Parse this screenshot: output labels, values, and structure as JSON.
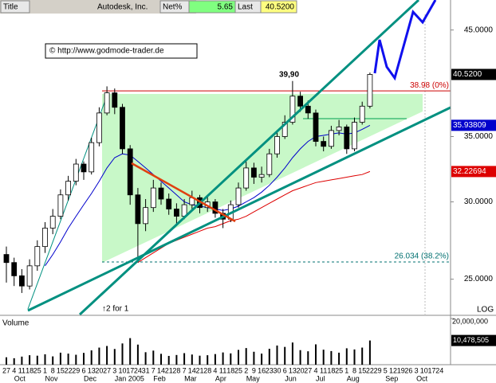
{
  "chart_data": {
    "type": "candlestick",
    "header": {
      "title": "Title",
      "name": "Autodesk, Inc.",
      "net_label": "Net%",
      "net": "5.65",
      "last_label": "Last",
      "last": "40.5200"
    },
    "copyright": "© http://www.godmode-trader.de",
    "high_note": "39,90",
    "split_note": "↑2 for 1",
    "scale_note": "LOG",
    "log_scale": true,
    "ylim": [
      23.0,
      48.3
    ],
    "yticks": [
      {
        "value": 25,
        "label": "25.0000"
      },
      {
        "value": 30,
        "label": "30.0000"
      },
      {
        "value": 35,
        "label": "35.0000"
      },
      {
        "value": 45,
        "label": "45.0000"
      }
    ],
    "categories": [
      "27",
      "4",
      "11",
      "18",
      "25",
      "1",
      "8",
      "15",
      "22",
      "29",
      "6",
      "13",
      "20",
      "27",
      "3",
      "10",
      "17",
      "24",
      "31",
      "7",
      "14",
      "21",
      "28",
      "7",
      "14",
      "21",
      "28",
      "4",
      "11",
      "18",
      "25",
      "2",
      "9",
      "16",
      "23",
      "30",
      "6",
      "13",
      "20",
      "27",
      "4",
      "11",
      "18",
      "25",
      "1",
      "8",
      "15",
      "22",
      "29",
      "5",
      "12",
      "19",
      "26",
      "3",
      "10",
      "17",
      "24"
    ],
    "months": [
      null,
      "Oct",
      null,
      null,
      null,
      "Nov",
      null,
      null,
      null,
      null,
      "Dec",
      null,
      null,
      null,
      "Jan 2005",
      null,
      null,
      null,
      null,
      "Feb",
      null,
      null,
      null,
      "Mar",
      null,
      null,
      null,
      "Apr",
      null,
      null,
      null,
      "May",
      null,
      null,
      null,
      null,
      "Jun",
      null,
      null,
      null,
      "Jul",
      null,
      null,
      null,
      "Aug",
      null,
      null,
      null,
      null,
      "Sep",
      null,
      null,
      null,
      "Oct",
      null,
      null,
      null
    ],
    "open": [
      26.5,
      26.0,
      25.2,
      24.6,
      25.8,
      27.0,
      28.2,
      29.0,
      30.5,
      31.5,
      32.8,
      32.2,
      34.5,
      37.0,
      38.8,
      37.5,
      34.0,
      30.5,
      28.5,
      29.6,
      31.0,
      30.2,
      29.5,
      29.0,
      29.8,
      30.3,
      29.6,
      30.0,
      29.2,
      28.8,
      29.8,
      31.0,
      32.5,
      31.8,
      32.0,
      33.6,
      35.0,
      36.2,
      38.5,
      37.6,
      37.0,
      34.6,
      34.2,
      35.5,
      35.8,
      34.0,
      36.2,
      37.6,
      null,
      null,
      null,
      null,
      null,
      null,
      null,
      null,
      null
    ],
    "high": [
      27.0,
      26.3,
      25.6,
      26.2,
      27.4,
      28.6,
      29.5,
      30.9,
      31.9,
      33.2,
      33.0,
      34.9,
      37.5,
      39.4,
      39.2,
      37.8,
      34.3,
      31.0,
      30.2,
      31.6,
      31.4,
      30.6,
      29.9,
      30.2,
      30.8,
      30.5,
      30.4,
      30.2,
      29.5,
      30.1,
      31.4,
      33.0,
      32.9,
      32.6,
      34.0,
      35.4,
      36.8,
      39.9,
      38.9,
      38.1,
      37.3,
      35.0,
      35.9,
      36.4,
      36.0,
      36.6,
      38.0,
      40.7,
      null,
      null,
      null,
      null,
      null,
      null,
      null,
      null,
      null
    ],
    "low": [
      24.8,
      24.6,
      24.2,
      24.4,
      25.5,
      26.6,
      27.8,
      28.8,
      30.1,
      31.2,
      31.6,
      32.0,
      34.2,
      36.8,
      36.9,
      33.6,
      29.8,
      26.0,
      28.0,
      29.3,
      29.8,
      29.1,
      28.5,
      28.8,
      29.5,
      29.2,
      29.3,
      28.9,
      28.2,
      28.6,
      29.6,
      30.8,
      31.3,
      31.4,
      31.8,
      33.3,
      34.8,
      36.0,
      37.1,
      36.5,
      34.2,
      33.8,
      34.0,
      35.1,
      33.6,
      33.8,
      36.0,
      37.4,
      null,
      null,
      null,
      null,
      null,
      null,
      null,
      null,
      null
    ],
    "close": [
      26.0,
      25.2,
      24.6,
      25.8,
      27.0,
      28.2,
      29.0,
      30.5,
      31.5,
      32.8,
      32.2,
      34.5,
      37.0,
      38.8,
      37.5,
      34.0,
      30.5,
      28.5,
      29.6,
      31.0,
      30.2,
      29.5,
      29.0,
      29.8,
      30.3,
      29.6,
      30.0,
      29.2,
      28.8,
      29.8,
      31.0,
      32.5,
      31.8,
      32.0,
      33.6,
      35.0,
      36.2,
      38.5,
      37.6,
      37.0,
      34.6,
      34.2,
      35.5,
      35.8,
      34.0,
      36.2,
      37.6,
      40.52,
      null,
      null,
      null,
      null,
      null,
      null,
      null,
      null,
      null
    ],
    "last_label": "40.5200",
    "overlays": [
      {
        "color": "#0000cc",
        "last_label": "35.93809",
        "values": [
          null,
          null,
          null,
          null,
          null,
          25.8,
          26.5,
          27.3,
          28.2,
          29.0,
          29.8,
          30.6,
          31.5,
          32.5,
          33.3,
          33.6,
          33.5,
          33.0,
          32.5,
          32.0,
          31.5,
          31.0,
          30.5,
          30.0,
          29.8,
          29.7,
          29.6,
          29.5,
          29.4,
          29.5,
          29.7,
          30.0,
          30.3,
          30.7,
          31.2,
          31.8,
          32.5,
          33.3,
          34.0,
          34.6,
          35.0,
          35.1,
          35.2,
          35.3,
          35.2,
          35.3,
          35.6,
          35.93809,
          null,
          null,
          null,
          null,
          null,
          null,
          null,
          null,
          null
        ]
      },
      {
        "color": "#dd0000",
        "last_label": "32.22694",
        "values": [
          null,
          null,
          null,
          null,
          null,
          null,
          null,
          null,
          null,
          null,
          null,
          null,
          null,
          null,
          null,
          null,
          null,
          26.0,
          26.3,
          26.6,
          26.9,
          27.2,
          27.4,
          27.6,
          27.8,
          28.0,
          28.2,
          28.3,
          28.5,
          28.7,
          28.8,
          29.0,
          29.3,
          29.6,
          29.9,
          30.2,
          30.5,
          30.8,
          31.0,
          31.2,
          31.4,
          31.5,
          31.6,
          31.7,
          31.8,
          31.9,
          32.0,
          32.22694,
          null,
          null,
          null,
          null,
          null,
          null,
          null,
          null,
          null
        ]
      }
    ],
    "levels": [
      {
        "value": 38.98,
        "label": "38.98 (0%)",
        "color": "#cc0000"
      },
      {
        "value": 26.034,
        "label": "26.034 (38.2%)",
        "color": "#007070"
      }
    ],
    "volume": {
      "label": "Volume",
      "ylim": [
        0,
        20000000
      ],
      "yticks": [
        {
          "value": 20000000,
          "label": "20,000,000"
        }
      ],
      "last_label": "10,478,505",
      "values": [
        3200000,
        2800000,
        3500000,
        4100000,
        3900000,
        4500000,
        3600000,
        5200000,
        4800000,
        4300000,
        5100000,
        6200000,
        7400000,
        8100000,
        6800000,
        9200000,
        11500000,
        8700000,
        5400000,
        6100000,
        4700000,
        3800000,
        4200000,
        5000000,
        4400000,
        3900000,
        4100000,
        4600000,
        5300000,
        4900000,
        6400000,
        7200000,
        5600000,
        4800000,
        6900000,
        8300000,
        7700000,
        9600000,
        6300000,
        5800000,
        8800000,
        6500000,
        5900000,
        5200000,
        7100000,
        6600000,
        7400000,
        10478505,
        null,
        null,
        null,
        null,
        null,
        null,
        null,
        null,
        null
      ]
    }
  }
}
